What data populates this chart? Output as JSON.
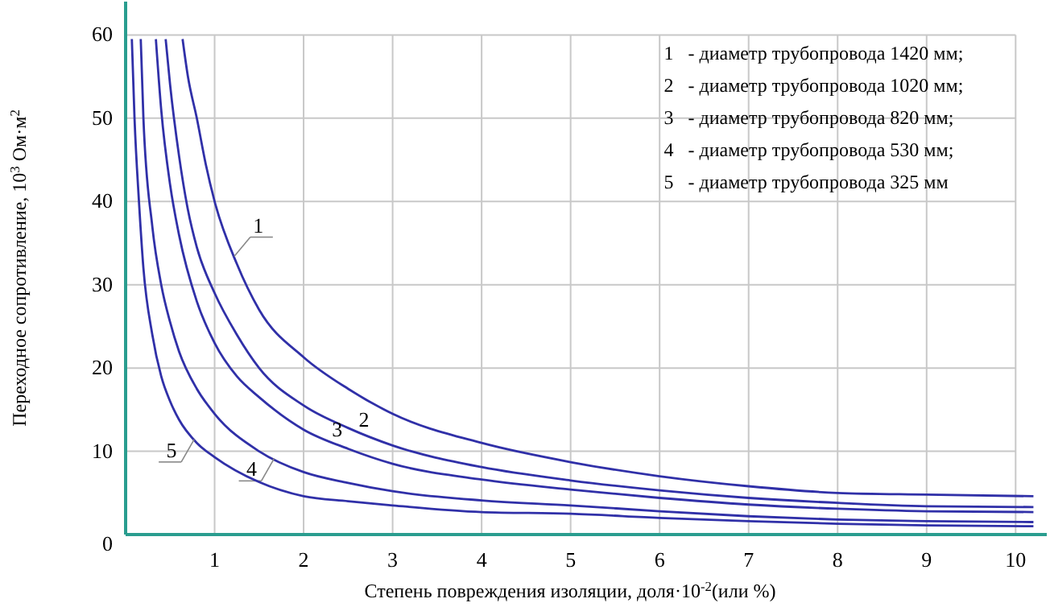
{
  "chart_data": {
    "type": "line",
    "xlabel": "Степень повреждения изоляции, доля·10$^{-2}$(или %)",
    "ylabel": "Переходное сопротивление, 10$^{3}$ Ом·м$^{2}$",
    "xlim": [
      0,
      10.35
    ],
    "ylim": [
      0,
      64
    ],
    "xticks": [
      1,
      2,
      3,
      4,
      5,
      6,
      7,
      8,
      9,
      10
    ],
    "yticks": [
      0,
      10,
      20,
      30,
      40,
      50,
      60
    ],
    "grid": true,
    "marker": "none",
    "line_style": "solid",
    "series": [
      {
        "name": "1",
        "color": "#3030a8",
        "x": [
          0.64,
          0.7,
          0.8,
          0.9,
          1,
          1.25,
          1.5,
          2,
          2.5,
          3,
          4,
          5,
          6,
          7,
          8,
          9,
          10.2
        ],
        "values": [
          59.5,
          55,
          50,
          44.5,
          40,
          32.5,
          27,
          21.3,
          17.5,
          14.5,
          11,
          8.7,
          7,
          5.8,
          5,
          4.8,
          4.6
        ]
      },
      {
        "name": "2",
        "color": "#3030a8",
        "x": [
          0.45,
          0.5,
          0.6,
          0.7,
          0.8,
          1,
          1.25,
          1.5,
          2,
          2.5,
          3,
          4,
          5,
          6,
          7,
          8,
          9,
          10.2
        ],
        "values": [
          59.5,
          54,
          45.5,
          39,
          34.5,
          29,
          24,
          20,
          15.5,
          12.8,
          10.7,
          8.1,
          6.5,
          5.3,
          4.4,
          3.8,
          3.4,
          3.3
        ]
      },
      {
        "name": "3",
        "color": "#3030a8",
        "x": [
          0.34,
          0.4,
          0.5,
          0.6,
          0.8,
          1,
          1.25,
          1.5,
          2,
          2.5,
          3,
          4,
          5,
          6,
          7,
          8,
          9,
          10.2
        ],
        "values": [
          59.5,
          51,
          42,
          36,
          28,
          23,
          19,
          16.5,
          12.6,
          10.3,
          8.5,
          6.6,
          5.4,
          4.4,
          3.6,
          3.1,
          2.8,
          2.7
        ]
      },
      {
        "name": "4",
        "color": "#3030a8",
        "x": [
          0.17,
          0.2,
          0.3,
          0.4,
          0.5,
          0.6,
          0.8,
          1,
          1.5,
          2,
          2.5,
          3,
          4,
          5,
          6,
          7,
          8,
          9,
          10.2
        ],
        "values": [
          59.5,
          50,
          37,
          30,
          25.5,
          22,
          17.5,
          14.5,
          10,
          7.5,
          6.2,
          5.2,
          4.1,
          3.5,
          2.8,
          2.2,
          1.8,
          1.6,
          1.5
        ]
      },
      {
        "name": "5",
        "color": "#3030a8",
        "x": [
          0.07,
          0.1,
          0.15,
          0.2,
          0.3,
          0.4,
          0.5,
          0.6,
          0.8,
          1,
          1.5,
          2,
          2.5,
          3,
          4,
          5,
          6,
          7,
          8,
          9,
          10.2
        ],
        "values": [
          59.5,
          50,
          40,
          32,
          24,
          19,
          16,
          13.8,
          11,
          9.3,
          6.3,
          4.6,
          4,
          3.5,
          2.7,
          2.5,
          2,
          1.6,
          1.3,
          1.1,
          1
        ]
      }
    ],
    "annotations": [
      "1   - диаметр трубопровода 1420 мм;",
      "2   - диаметр трубопровода 1020 мм;",
      "3   - диаметр трубопровода 820 мм;",
      "4   - диаметр трубопровода 530 мм;",
      "5   - диаметр трубопровода 325 мм"
    ]
  }
}
